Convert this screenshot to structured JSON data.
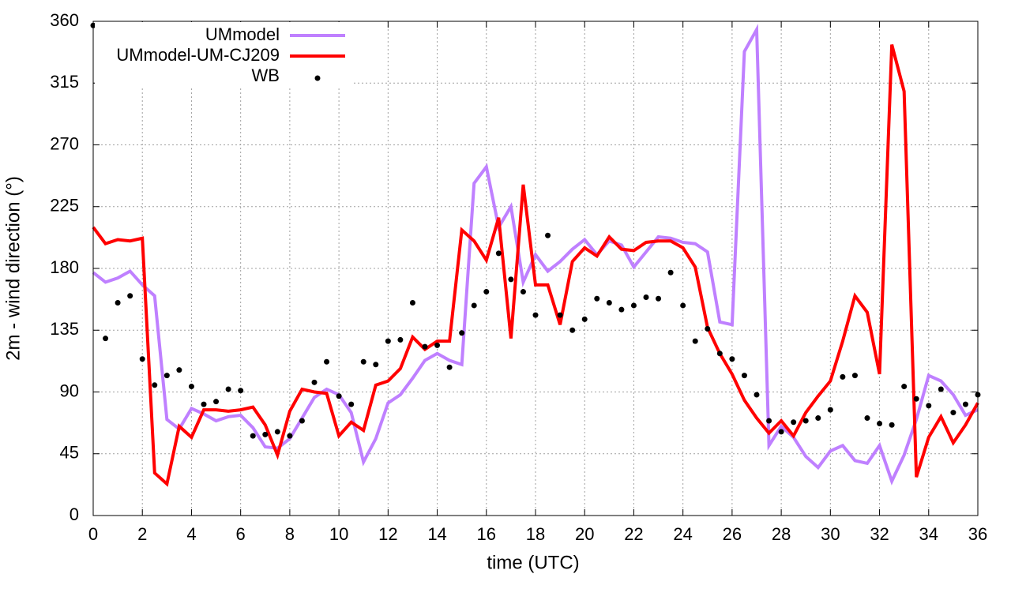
{
  "chart_data": {
    "type": "line",
    "xlabel": "time (UTC)",
    "ylabel": "2m - wind direction (°)",
    "x": [
      0,
      0.5,
      1,
      1.5,
      2,
      2.5,
      3,
      3.5,
      4,
      4.5,
      5,
      5.5,
      6,
      6.5,
      7,
      7.5,
      8,
      8.5,
      9,
      9.5,
      10,
      10.5,
      11,
      11.5,
      12,
      12.5,
      13,
      13.5,
      14,
      14.5,
      15,
      15.5,
      16,
      16.5,
      17,
      17.5,
      18,
      18.5,
      19,
      19.5,
      20,
      20.5,
      21,
      21.5,
      22,
      22.5,
      23,
      23.5,
      24,
      24.5,
      25,
      25.5,
      26,
      26.5,
      27,
      27.5,
      28,
      28.5,
      29,
      29.5,
      30,
      30.5,
      31,
      31.5,
      32,
      32.5,
      33,
      33.5,
      34,
      34.5,
      35,
      35.5,
      36
    ],
    "series": [
      {
        "name": "UMmodel",
        "color": "#bf80ff",
        "style": "line",
        "values": [
          177,
          170,
          173,
          178,
          168,
          160,
          70,
          63,
          78,
          74,
          69,
          72,
          73,
          64,
          50,
          49,
          56,
          71,
          86,
          92,
          88,
          75,
          39,
          56,
          82,
          88,
          100,
          113,
          118,
          113,
          110,
          242,
          254,
          210,
          225,
          170,
          190,
          178,
          185,
          194,
          201,
          190,
          200,
          197,
          181,
          192,
          203,
          202,
          199,
          198,
          192,
          141,
          139,
          338,
          354,
          51,
          65,
          57,
          43,
          35,
          47,
          51,
          40,
          38,
          51,
          25,
          44,
          70,
          102,
          98,
          88,
          73,
          77
        ]
      },
      {
        "name": "UMmodel-UM-CJ209",
        "color": "#ff0000",
        "style": "line",
        "values": [
          210,
          198,
          201,
          200,
          202,
          31,
          23,
          65,
          57,
          77,
          77,
          76,
          77,
          79,
          66,
          44,
          76,
          92,
          90,
          89,
          58,
          68,
          62,
          95,
          98,
          107,
          130,
          121,
          127,
          127,
          208,
          200,
          186,
          217,
          129,
          241,
          168,
          168,
          139,
          185,
          195,
          189,
          203,
          194,
          193,
          199,
          200,
          200,
          195,
          181,
          137,
          118,
          103,
          84,
          71,
          60,
          69,
          58,
          75,
          87,
          98,
          127,
          160,
          148,
          103,
          343,
          309,
          28,
          57,
          72,
          53,
          66,
          82
        ]
      },
      {
        "name": "WB",
        "color": "#000000",
        "style": "points",
        "values": [
          357,
          129,
          155,
          160,
          114,
          95,
          102,
          106,
          94,
          81,
          83,
          92,
          91,
          58,
          59,
          61,
          58,
          69,
          97,
          112,
          87,
          81,
          112,
          110,
          127,
          128,
          155,
          123,
          124,
          108,
          133,
          153,
          163,
          191,
          172,
          163,
          146,
          204,
          146,
          135,
          143,
          158,
          155,
          150,
          153,
          159,
          158,
          177,
          153,
          127,
          136,
          118,
          114,
          102,
          88,
          69,
          61,
          68,
          69,
          71,
          77,
          101,
          102,
          71,
          67,
          66,
          94,
          85,
          80,
          92,
          75,
          81,
          88
        ]
      }
    ],
    "xlim": [
      0,
      36
    ],
    "xticks": [
      0,
      2,
      4,
      6,
      8,
      10,
      12,
      14,
      16,
      18,
      20,
      22,
      24,
      26,
      28,
      30,
      32,
      34,
      36
    ],
    "ylim": [
      0,
      360
    ],
    "yticks": [
      0,
      45,
      90,
      135,
      180,
      225,
      270,
      315,
      360
    ],
    "grid": true,
    "legend": "top-left"
  }
}
